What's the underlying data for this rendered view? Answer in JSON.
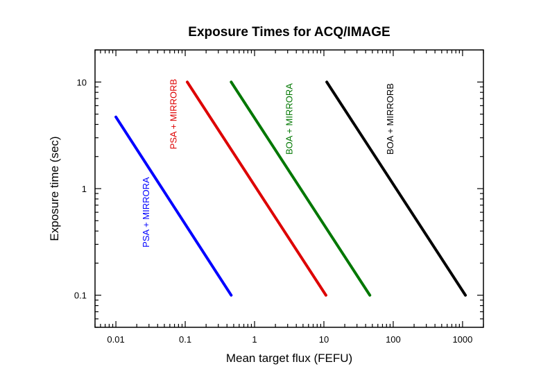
{
  "chart_data": {
    "type": "line",
    "title": "Exposure Times for ACQ/IMAGE",
    "xlabel": "Mean target flux (FEFU)",
    "ylabel": "Exposure time (sec)",
    "xscale": "log",
    "yscale": "log",
    "xlim": [
      0.005,
      2000
    ],
    "ylim": [
      0.05,
      20
    ],
    "xticks": [
      0.01,
      0.1,
      1,
      10,
      100,
      1000
    ],
    "xtick_labels": [
      "0.01",
      "0.1",
      "1",
      "10",
      "100",
      "1000"
    ],
    "yticks": [
      0.1,
      1,
      10
    ],
    "ytick_labels": [
      "0.1",
      "1",
      "10"
    ],
    "grid": false,
    "legend": "none",
    "series": [
      {
        "name": "PSA + MIRRORA",
        "color": "#0000ff",
        "x": [
          0.01,
          0.46
        ],
        "y": [
          4.7,
          0.1
        ],
        "label_at": [
          0.03,
          0.6
        ]
      },
      {
        "name": "PSA + MIRRORB",
        "color": "#dd0000",
        "x": [
          0.107,
          10.7
        ],
        "y": [
          10,
          0.1
        ],
        "label_at": [
          0.075,
          5
        ]
      },
      {
        "name": "BOA + MIRRORA",
        "color": "#007700",
        "x": [
          0.46,
          46
        ],
        "y": [
          10,
          0.1
        ],
        "label_at": [
          3.5,
          4.5
        ]
      },
      {
        "name": "BOA + MIRRORB",
        "color": "#000000",
        "x": [
          11,
          1100
        ],
        "y": [
          10,
          0.1
        ],
        "label_at": [
          100,
          4.5
        ]
      }
    ]
  }
}
